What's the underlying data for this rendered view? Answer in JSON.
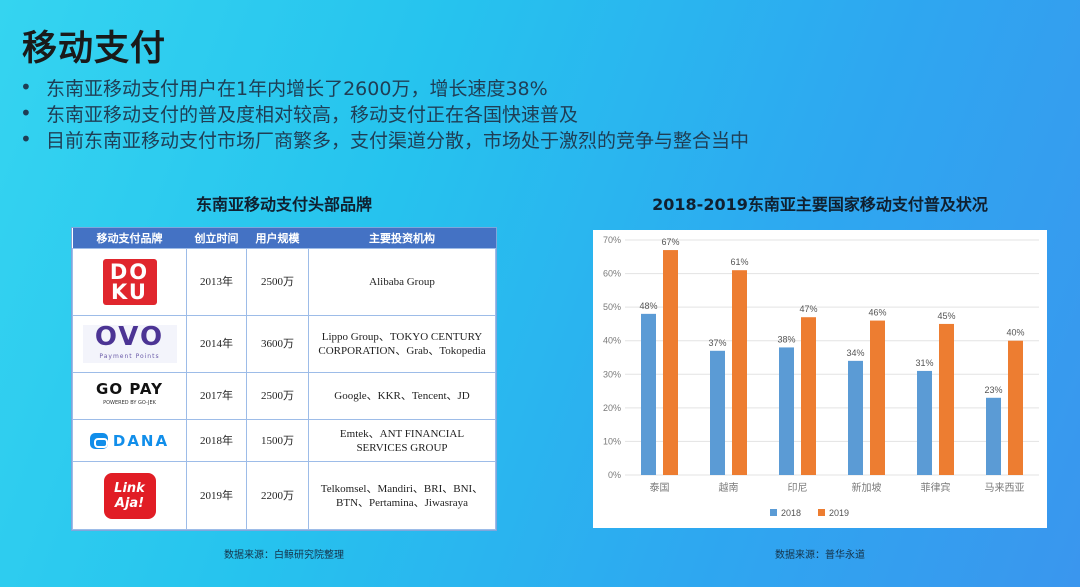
{
  "page": {
    "title": "移动支付",
    "bullets": [
      "东南亚移动支付用户在1年内增长了2600万，增长速度38%",
      "东南亚移动支付的普及度相对较高，移动支付正在各国快速普及",
      "目前东南亚移动支付市场厂商繁多，支付渠道分散，市场处于激烈的竞争与整合当中"
    ],
    "bullet_marker": "•"
  },
  "table": {
    "caption": "东南亚移动支付头部品牌",
    "headers": [
      "移动支付品牌",
      "创立时间",
      "用户规模",
      "主要投资机构"
    ],
    "rows": [
      {
        "brand": "DOKU",
        "logo_lines": [
          "DO",
          "KU"
        ],
        "founded": "2013年",
        "users": "2500万",
        "investors": "Alibaba Group"
      },
      {
        "brand": "OVO",
        "logo_sub": "Payment Points",
        "founded": "2014年",
        "users": "3600万",
        "investors": "Lippo Group、TOKYO CENTURY CORPORATION、Grab、Tokopedia"
      },
      {
        "brand": "GO PAY",
        "logo_sub": "POWERED BY GO-JEK",
        "founded": "2017年",
        "users": "2500万",
        "investors": "Google、KKR、Tencent、JD"
      },
      {
        "brand": "DANA",
        "founded": "2018年",
        "users": "1500万",
        "investors": "Emtek、ANT FINANCIAL SERVICES GROUP"
      },
      {
        "brand": "LinkAja!",
        "logo_lines": [
          "Link",
          "Aja!"
        ],
        "founded": "2019年",
        "users": "2200万",
        "investors": "Telkomsel、Mandiri、BRI、BNI、BTN、Pertamina、Jiwasraya"
      }
    ],
    "source": "数据来源：白鲸研究院整理",
    "colors": {
      "header": "#4472c4",
      "grid": "#9dbce8"
    }
  },
  "chart_data": {
    "type": "bar",
    "title": "2018-2019东南亚主要国家移动支付普及状况",
    "categories": [
      "泰国",
      "越南",
      "印尼",
      "新加坡",
      "菲律宾",
      "马来西亚"
    ],
    "series": [
      {
        "name": "2018",
        "values": [
          48,
          37,
          38,
          34,
          31,
          23
        ],
        "labels": [
          "48%",
          "37%",
          "38%",
          "34%",
          "31%",
          "23%"
        ],
        "color": "#5b9bd5"
      },
      {
        "name": "2019",
        "values": [
          67,
          61,
          47,
          46,
          45,
          40
        ],
        "labels": [
          "67%",
          "61%",
          "47%",
          "46%",
          "45%",
          "40%"
        ],
        "color": "#ed7d31"
      }
    ],
    "ylim": [
      0,
      70
    ],
    "yticks": [
      "0%",
      "10%",
      "20%",
      "30%",
      "40%",
      "50%",
      "60%",
      "70%"
    ],
    "grid": true,
    "legend": "bottom-center",
    "source": "数据来源：普华永道"
  }
}
